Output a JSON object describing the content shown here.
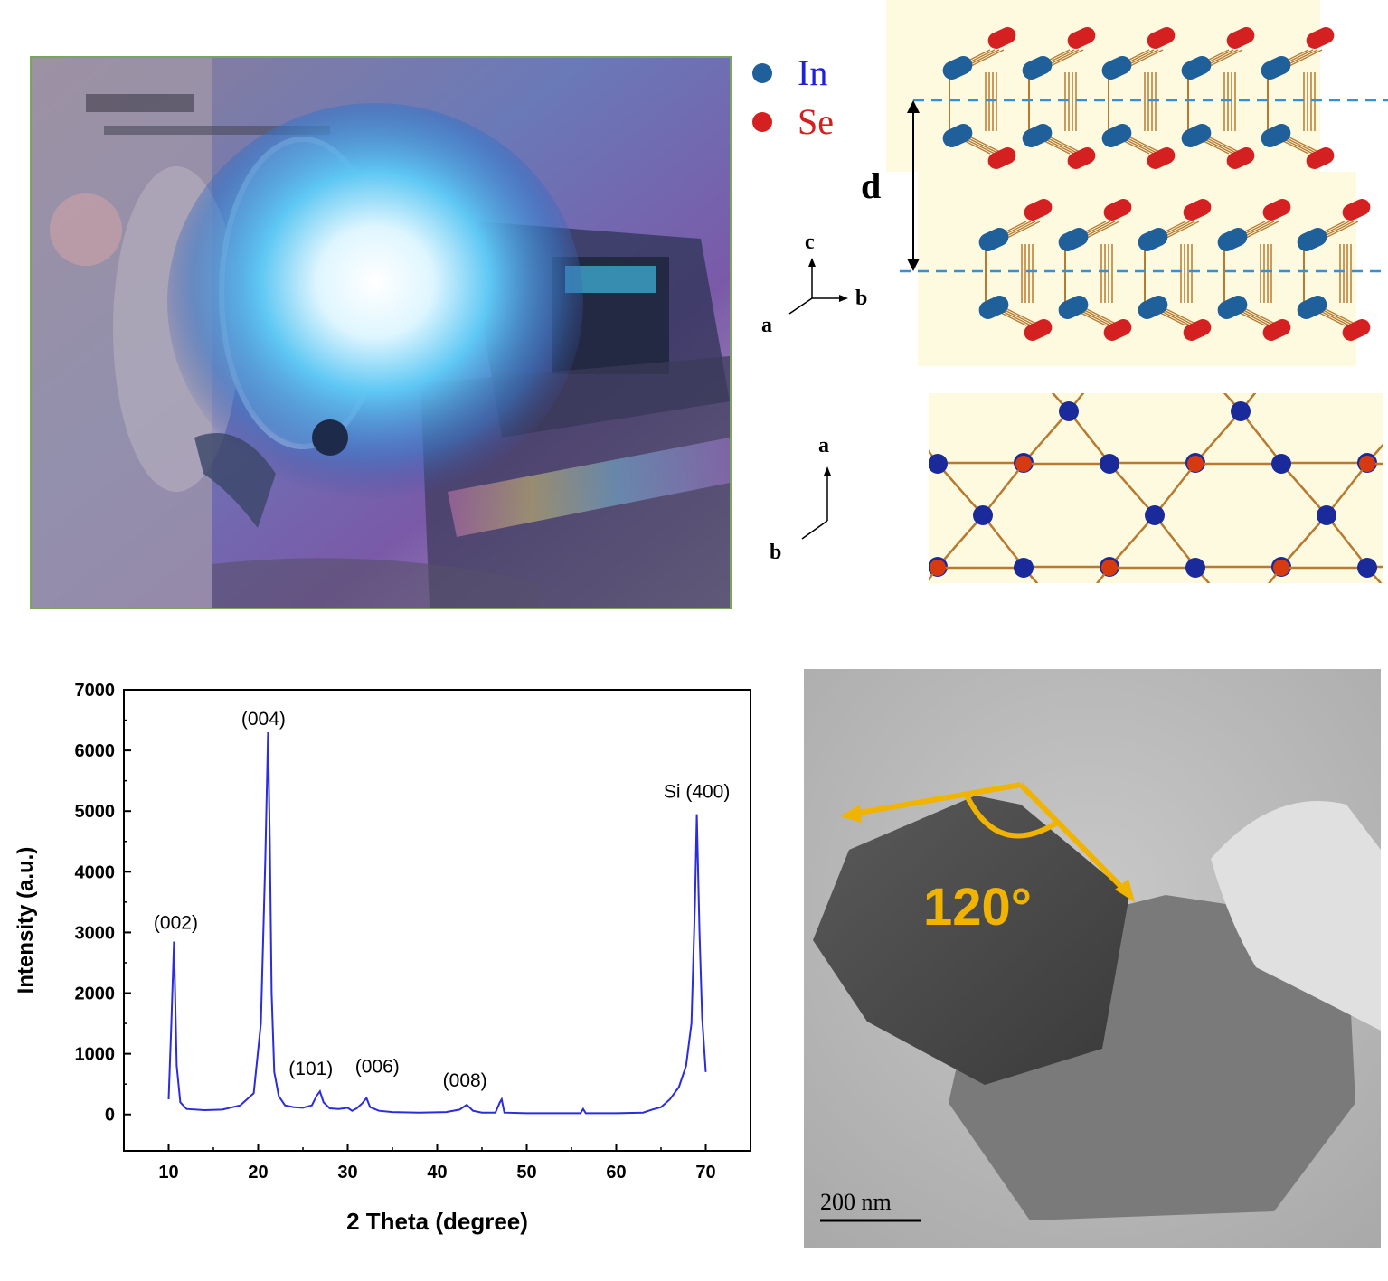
{
  "legend": {
    "in_label": "In",
    "se_label": "Se",
    "in_color": "#1f5f9a",
    "se_color": "#d42020"
  },
  "side_view": {
    "spacing_label": "d",
    "axes": {
      "up": "c",
      "right": "b",
      "diag": "a"
    }
  },
  "top_view": {
    "axes": {
      "up": "a",
      "diag": "b"
    }
  },
  "tem": {
    "angle_label": "120°",
    "scale_bar": "200 nm"
  },
  "chart_data": {
    "type": "line",
    "xlabel": "2 Theta (degree)",
    "ylabel": "Intensity (a.u.)",
    "xlim": [
      5,
      75
    ],
    "ylim": [
      -600,
      7000
    ],
    "xticks": [
      10,
      20,
      30,
      40,
      50,
      60,
      70
    ],
    "yticks": [
      0,
      1000,
      2000,
      3000,
      4000,
      5000,
      6000,
      7000
    ],
    "line_color": "#2b2be0",
    "series": [
      {
        "x": [
          10.0,
          10.3,
          10.6,
          10.9,
          11.3,
          12,
          14,
          16,
          18,
          19.5,
          20.3,
          20.8,
          21.1,
          21.3,
          21.5,
          21.8,
          22.3,
          23,
          24,
          25,
          26,
          26.5,
          26.9,
          27.3,
          28,
          29,
          30,
          30.5,
          31,
          31.6,
          32.1,
          32.5,
          33.5,
          35,
          38,
          41,
          42.5,
          43.3,
          44,
          45,
          46.5,
          47.0,
          47.2,
          47.5,
          50,
          53,
          56,
          56.3,
          56.6,
          60,
          63,
          64,
          65,
          66,
          67,
          67.8,
          68.4,
          68.8,
          69.0,
          69.3,
          69.6,
          70.0
        ],
        "y": [
          250,
          1500,
          2850,
          800,
          200,
          90,
          70,
          80,
          150,
          350,
          1500,
          4200,
          6300,
          4500,
          2000,
          700,
          300,
          150,
          120,
          110,
          150,
          300,
          380,
          200,
          100,
          90,
          110,
          60,
          100,
          180,
          270,
          120,
          60,
          40,
          30,
          40,
          80,
          160,
          60,
          30,
          30,
          200,
          250,
          30,
          20,
          20,
          20,
          90,
          20,
          20,
          30,
          80,
          120,
          250,
          450,
          800,
          1500,
          3500,
          4950,
          3000,
          1600,
          700
        ]
      }
    ],
    "annotations": [
      {
        "text": "(002)",
        "x": 10.6,
        "y": 2850
      },
      {
        "text": "(004)",
        "x": 21.1,
        "y": 6300
      },
      {
        "text": "(101)",
        "x": 26.9,
        "y": 380
      },
      {
        "text": "(006)",
        "x": 32.1,
        "y": 270
      },
      {
        "text": "(008)",
        "x": 43.3,
        "y": 160
      },
      {
        "text": "Si (400)",
        "x": 69.0,
        "y": 4950
      }
    ]
  }
}
